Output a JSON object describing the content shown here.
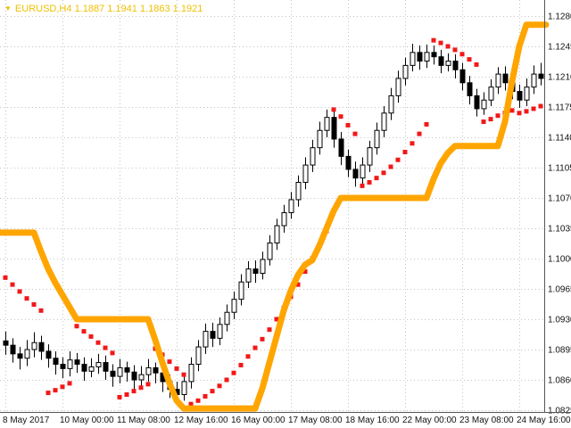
{
  "header": {
    "dropdown_icon": "▼",
    "symbol": "EURUSD,H4",
    "quote": "1.1887 1.1941 1.1863 1.1921"
  },
  "chart_data": {
    "type": "ohlc",
    "title": "EURUSD,H4",
    "ylim": [
      1.0825,
      1.128
    ],
    "grid": true,
    "y_ticks": [
      "1.1280",
      "1.1245",
      "1.1210",
      "1.1175",
      "1.1140",
      "1.1105",
      "1.1070",
      "1.1035",
      "1.1000",
      "1.0965",
      "1.0930",
      "1.0895",
      "1.0860",
      "1.0825"
    ],
    "x_ticks": [
      {
        "label": "8 May 2017",
        "bar": 0
      },
      {
        "label": "10 May 00:00",
        "bar": 8
      },
      {
        "label": "11 May 08:00",
        "bar": 16
      },
      {
        "label": "12 May 16:00",
        "bar": 24
      },
      {
        "label": "16 May 00:00",
        "bar": 32
      },
      {
        "label": "17 May 08:00",
        "bar": 40
      },
      {
        "label": "18 May 16:00",
        "bar": 48
      },
      {
        "label": "22 May 00:00",
        "bar": 56
      },
      {
        "label": "23 May 08:00",
        "bar": 64
      },
      {
        "label": "24 May 16:00",
        "bar": 72
      }
    ],
    "colors": {
      "background": "#FFFFFF",
      "grid": "#C4C4C4",
      "bar": "#000000",
      "bull_fill": "#FFFFFF",
      "sar": "#F21818",
      "stop": "#FFA500",
      "title": "#EFC000",
      "axis_text": "#111111",
      "axis_line": "#555555"
    },
    "bars": [
      [
        1.0905,
        1.0916,
        1.0889,
        1.09
      ],
      [
        1.09,
        1.0908,
        1.088,
        1.089
      ],
      [
        1.089,
        1.0898,
        1.0872,
        1.0885
      ],
      [
        1.0885,
        1.0906,
        1.0876,
        1.0895
      ],
      [
        1.0895,
        1.0915,
        1.0886,
        1.0903
      ],
      [
        1.0903,
        1.0911,
        1.0883,
        1.0893
      ],
      [
        1.0893,
        1.0901,
        1.0874,
        1.0885
      ],
      [
        1.0885,
        1.0893,
        1.0866,
        1.0878
      ],
      [
        1.0878,
        1.0886,
        1.0862,
        1.0873
      ],
      [
        1.0873,
        1.0893,
        1.0864,
        1.0883
      ],
      [
        1.0883,
        1.0891,
        1.0868,
        1.0878
      ],
      [
        1.0878,
        1.0886,
        1.0859,
        1.087
      ],
      [
        1.087,
        1.0885,
        1.0863,
        1.0875
      ],
      [
        1.0875,
        1.089,
        1.0867,
        1.088
      ],
      [
        1.088,
        1.0888,
        1.086,
        1.087
      ],
      [
        1.087,
        1.0878,
        1.0852,
        1.0864
      ],
      [
        1.0864,
        1.0884,
        1.0856,
        1.0874
      ],
      [
        1.0874,
        1.0881,
        1.0858,
        1.0869
      ],
      [
        1.0869,
        1.0877,
        1.0849,
        1.086
      ],
      [
        1.086,
        1.0876,
        1.0852,
        1.0866
      ],
      [
        1.0866,
        1.0884,
        1.0858,
        1.0874
      ],
      [
        1.0874,
        1.088,
        1.0856,
        1.0868
      ],
      [
        1.0868,
        1.0876,
        1.0846,
        1.0858
      ],
      [
        1.0858,
        1.0866,
        1.0839,
        1.0849
      ],
      [
        1.0849,
        1.0858,
        1.0832,
        1.0843
      ],
      [
        1.0843,
        1.0866,
        1.0836,
        1.0858
      ],
      [
        1.0858,
        1.0886,
        1.085,
        1.0878
      ],
      [
        1.0878,
        1.0906,
        1.087,
        1.0898
      ],
      [
        1.0898,
        1.0925,
        1.089,
        1.0916
      ],
      [
        1.0916,
        1.0926,
        1.0898,
        1.0908
      ],
      [
        1.0908,
        1.0932,
        1.09,
        1.0924
      ],
      [
        1.0924,
        1.0947,
        1.0916,
        1.0938
      ],
      [
        1.0938,
        1.0962,
        1.093,
        1.0953
      ],
      [
        1.0953,
        1.0982,
        1.0946,
        1.0973
      ],
      [
        1.0973,
        1.0997,
        1.0966,
        1.0988
      ],
      [
        1.0988,
        1.0998,
        1.0972,
        1.0983
      ],
      [
        1.0983,
        1.1008,
        1.0976,
        1.0999
      ],
      [
        1.0999,
        1.1027,
        1.0992,
        1.1018
      ],
      [
        1.1018,
        1.1046,
        1.101,
        1.1038
      ],
      [
        1.1038,
        1.1062,
        1.103,
        1.1053
      ],
      [
        1.1053,
        1.1077,
        1.1046,
        1.1068
      ],
      [
        1.1068,
        1.1096,
        1.106,
        1.1088
      ],
      [
        1.1088,
        1.1117,
        1.108,
        1.1108
      ],
      [
        1.1108,
        1.1137,
        1.11,
        1.1128
      ],
      [
        1.1128,
        1.1158,
        1.112,
        1.1148
      ],
      [
        1.1148,
        1.1172,
        1.114,
        1.1163
      ],
      [
        1.1163,
        1.117,
        1.1128,
        1.1138
      ],
      [
        1.1138,
        1.1146,
        1.1108,
        1.1118
      ],
      [
        1.1118,
        1.1126,
        1.1094,
        1.1103
      ],
      [
        1.1103,
        1.1112,
        1.1083,
        1.1093
      ],
      [
        1.1093,
        1.1117,
        1.1086,
        1.1108
      ],
      [
        1.1108,
        1.1136,
        1.11,
        1.1128
      ],
      [
        1.1128,
        1.1157,
        1.112,
        1.1148
      ],
      [
        1.1148,
        1.1176,
        1.114,
        1.1168
      ],
      [
        1.1168,
        1.1197,
        1.116,
        1.1188
      ],
      [
        1.1188,
        1.1217,
        1.118,
        1.1208
      ],
      [
        1.1208,
        1.1232,
        1.12,
        1.1223
      ],
      [
        1.1223,
        1.1248,
        1.1216,
        1.1238
      ],
      [
        1.1238,
        1.1246,
        1.1218,
        1.1228
      ],
      [
        1.1228,
        1.1247,
        1.122,
        1.1238
      ],
      [
        1.1238,
        1.1246,
        1.1224,
        1.1233
      ],
      [
        1.1233,
        1.1241,
        1.1214,
        1.1223
      ],
      [
        1.1223,
        1.1237,
        1.1216,
        1.1228
      ],
      [
        1.1228,
        1.1236,
        1.1208,
        1.1218
      ],
      [
        1.1218,
        1.1226,
        1.1194,
        1.1203
      ],
      [
        1.1203,
        1.1211,
        1.1178,
        1.1188
      ],
      [
        1.1188,
        1.1196,
        1.1164,
        1.1173
      ],
      [
        1.1173,
        1.1192,
        1.1166,
        1.1183
      ],
      [
        1.1183,
        1.1207,
        1.1176,
        1.1198
      ],
      [
        1.1198,
        1.1221,
        1.119,
        1.1213
      ],
      [
        1.1213,
        1.1222,
        1.1194,
        1.1203
      ],
      [
        1.1203,
        1.1212,
        1.1184,
        1.1193
      ],
      [
        1.1193,
        1.1201,
        1.1174,
        1.1183
      ],
      [
        1.1183,
        1.1208,
        1.1176,
        1.1198
      ],
      [
        1.1198,
        1.1223,
        1.119,
        1.1213
      ],
      [
        1.1213,
        1.1226,
        1.12,
        1.1208
      ]
    ],
    "series": [
      {
        "name": "parabolic-sar-dots",
        "type": "scatter",
        "color": "#F21818",
        "values": [
          1.0978,
          1.097,
          1.0962,
          1.0954,
          1.0947,
          1.094,
          1.0845,
          1.0848,
          1.0852,
          1.0856,
          1.0922,
          1.0916,
          1.091,
          1.0903,
          1.0897,
          1.0891,
          1.084,
          1.0843,
          1.0847,
          1.0851,
          1.0855,
          1.0896,
          1.0889,
          1.0881,
          1.0873,
          1.0866,
          1.0832,
          1.0836,
          1.0841,
          1.0847,
          1.0853,
          1.086,
          1.0868,
          1.0877,
          1.0887,
          1.0897,
          1.0907,
          1.0918,
          1.093,
          1.0943,
          1.0956,
          1.097,
          1.0985,
          1.1,
          1.1016,
          1.1032,
          1.1172,
          1.1164,
          1.1154,
          1.1144,
          1.1084,
          1.1088,
          1.1093,
          1.1099,
          1.1106,
          1.1114,
          1.1123,
          1.1133,
          1.1144,
          1.1155,
          1.1252,
          1.1249,
          1.1245,
          1.1241,
          1.1236,
          1.123,
          1.1224,
          1.1158,
          1.1161,
          1.1165,
          1.1168,
          1.1171,
          1.1168,
          1.117,
          1.1173,
          1.1176
        ]
      },
      {
        "name": "trend-stop-line",
        "type": "line",
        "color": "#FFA500",
        "values": [
          1.103,
          1.103,
          1.103,
          1.103,
          1.103,
          1.1008,
          1.0988,
          1.0972,
          1.0958,
          1.0944,
          1.093,
          1.093,
          1.093,
          1.093,
          1.093,
          1.093,
          1.093,
          1.093,
          1.093,
          1.093,
          1.093,
          1.0906,
          1.088,
          1.0856,
          1.0836,
          1.0827,
          1.0827,
          1.0827,
          1.0827,
          1.0827,
          1.0827,
          1.0827,
          1.0827,
          1.0827,
          1.0827,
          1.0827,
          1.085,
          1.088,
          1.091,
          1.094,
          1.0963,
          1.0981,
          1.0993,
          1.0998,
          1.1015,
          1.1035,
          1.1055,
          1.107,
          1.107,
          1.107,
          1.107,
          1.107,
          1.107,
          1.107,
          1.107,
          1.107,
          1.107,
          1.107,
          1.107,
          1.107,
          1.1092,
          1.111,
          1.1122,
          1.113,
          1.113,
          1.113,
          1.113,
          1.113,
          1.113,
          1.113,
          1.1158,
          1.1205,
          1.1245,
          1.127,
          1.127,
          1.127
        ]
      }
    ]
  }
}
